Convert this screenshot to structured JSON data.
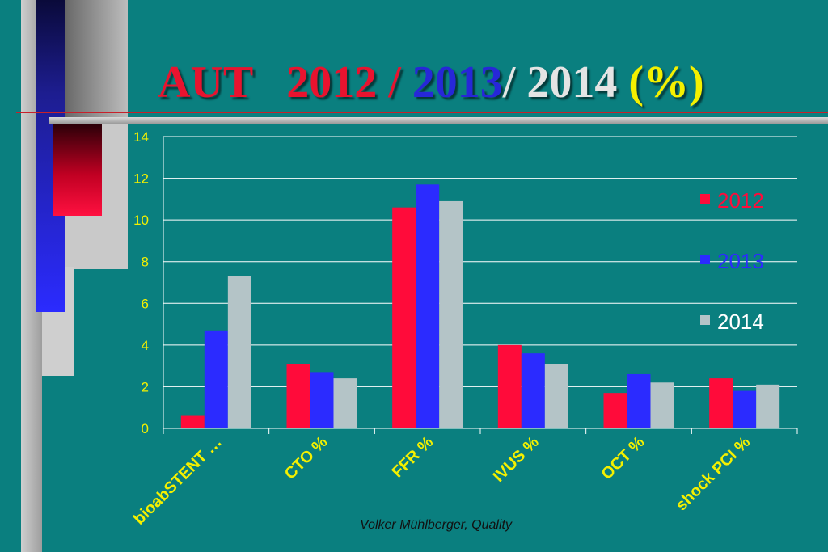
{
  "title": {
    "parts": [
      {
        "text": "AUT   ",
        "color": "#e8132f"
      },
      {
        "text": "2012 / ",
        "color": "#e8132f"
      },
      {
        "text": "2013",
        "color": "#2727d8"
      },
      {
        "text": "/ 2014 ",
        "color": "#e4e4e4"
      },
      {
        "text": "(%)",
        "color": "#f4f000"
      }
    ]
  },
  "footer": "Volker Mühlberger, Quality",
  "colors": {
    "background": "#0a7f7f",
    "axis_text": "#f4f000",
    "grid": "#ffffff"
  },
  "chart_data": {
    "type": "bar",
    "categories": [
      "bioabSTENT …",
      "CTO %",
      "FFR %",
      "IVUS %",
      "OCT %",
      "shock PCI %"
    ],
    "series": [
      {
        "name": "2012",
        "color": "#ff0b3a",
        "values": [
          0.6,
          3.1,
          10.6,
          4.0,
          1.7,
          2.4
        ]
      },
      {
        "name": "2013",
        "color": "#2b2bff",
        "values": [
          4.7,
          2.7,
          11.7,
          3.6,
          2.6,
          1.8
        ]
      },
      {
        "name": "2014",
        "color": "#b4c4c7",
        "values": [
          7.3,
          2.4,
          10.9,
          3.1,
          2.2,
          2.1
        ]
      }
    ],
    "ylim": [
      0,
      14
    ],
    "yticks": [
      0,
      2,
      4,
      6,
      8,
      10,
      12,
      14
    ],
    "grid": true,
    "legend": "right",
    "xlabel": "",
    "ylabel": ""
  }
}
